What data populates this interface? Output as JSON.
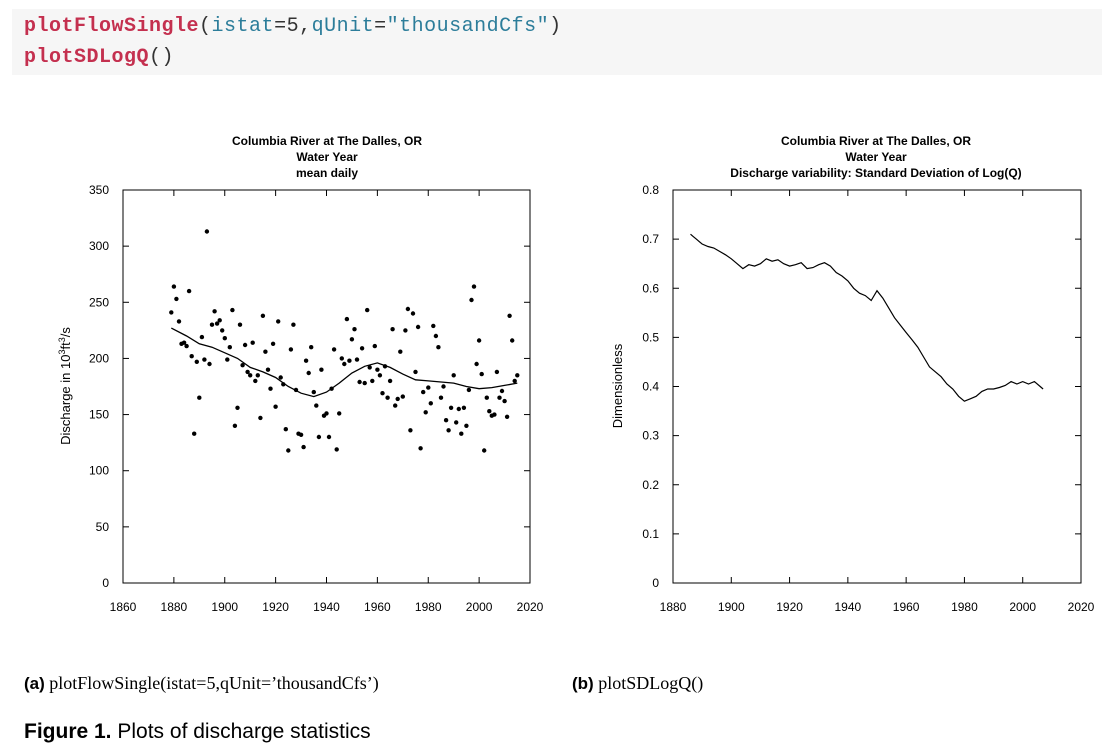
{
  "code": {
    "line1": {
      "fn": "plotFlowSingle",
      "open": "(",
      "arg1": "istat",
      "eq1": "=",
      "val1": "5",
      "comma": ",",
      "arg2": "qUnit",
      "eq2": "=",
      "val2": "\"thousandCfs\"",
      "close": ")"
    },
    "line2": {
      "fn": "plotSDLogQ",
      "parens": "()"
    }
  },
  "captions": {
    "a_label": "(a)",
    "a_text": "plotFlowSingle(istat=5,qUnit=’thousandCfs’)",
    "b_label": "(b)",
    "b_text": "plotSDLogQ()",
    "figure_label": "Figure 1.",
    "figure_text": "Plots of discharge statistics"
  },
  "chart_data": [
    {
      "type": "scatter",
      "title": [
        "Columbia River at The Dalles, OR",
        "Water Year",
        "mean daily"
      ],
      "xlabel": "",
      "ylabel": "Discharge in 10³ft³/s",
      "ylabel_parts": {
        "a": "Discharge in 10",
        "b": "3",
        "c": "ft",
        "d": "3",
        "e": "/s"
      },
      "xlim": [
        1860,
        2020
      ],
      "ylim": [
        0,
        350
      ],
      "xticks": [
        1860,
        1880,
        1900,
        1920,
        1940,
        1960,
        1980,
        2000,
        2020
      ],
      "yticks": [
        0,
        50,
        100,
        150,
        200,
        250,
        300,
        350
      ],
      "grid": false,
      "points": [
        [
          1879,
          241
        ],
        [
          1880,
          264
        ],
        [
          1881,
          253
        ],
        [
          1882,
          233
        ],
        [
          1883,
          213
        ],
        [
          1884,
          214
        ],
        [
          1885,
          211
        ],
        [
          1886,
          260
        ],
        [
          1887,
          202
        ],
        [
          1888,
          133
        ],
        [
          1889,
          197
        ],
        [
          1890,
          165
        ],
        [
          1891,
          219
        ],
        [
          1892,
          199
        ],
        [
          1893,
          313
        ],
        [
          1894,
          195
        ],
        [
          1895,
          230
        ],
        [
          1896,
          242
        ],
        [
          1897,
          231
        ],
        [
          1898,
          234
        ],
        [
          1899,
          225
        ],
        [
          1900,
          218
        ],
        [
          1901,
          199
        ],
        [
          1902,
          210
        ],
        [
          1903,
          243
        ],
        [
          1904,
          140
        ],
        [
          1905,
          156
        ],
        [
          1906,
          230
        ],
        [
          1907,
          194
        ],
        [
          1908,
          212
        ],
        [
          1909,
          188
        ],
        [
          1910,
          185
        ],
        [
          1911,
          214
        ],
        [
          1912,
          180
        ],
        [
          1913,
          185
        ],
        [
          1914,
          147
        ],
        [
          1915,
          238
        ],
        [
          1916,
          206
        ],
        [
          1917,
          190
        ],
        [
          1918,
          173
        ],
        [
          1919,
          213
        ],
        [
          1920,
          157
        ],
        [
          1921,
          233
        ],
        [
          1922,
          183
        ],
        [
          1923,
          177
        ],
        [
          1924,
          137
        ],
        [
          1925,
          118
        ],
        [
          1926,
          208
        ],
        [
          1927,
          230
        ],
        [
          1928,
          172
        ],
        [
          1929,
          133
        ],
        [
          1930,
          132
        ],
        [
          1931,
          121
        ],
        [
          1932,
          198
        ],
        [
          1933,
          187
        ],
        [
          1934,
          210
        ],
        [
          1935,
          170
        ],
        [
          1936,
          158
        ],
        [
          1937,
          130
        ],
        [
          1938,
          190
        ],
        [
          1939,
          149
        ],
        [
          1940,
          151
        ],
        [
          1941,
          130
        ],
        [
          1942,
          173
        ],
        [
          1943,
          208
        ],
        [
          1944,
          119
        ],
        [
          1945,
          151
        ],
        [
          1946,
          200
        ],
        [
          1947,
          195
        ],
        [
          1948,
          235
        ],
        [
          1949,
          198
        ],
        [
          1950,
          217
        ],
        [
          1951,
          226
        ],
        [
          1952,
          199
        ],
        [
          1953,
          179
        ],
        [
          1954,
          209
        ],
        [
          1955,
          178
        ],
        [
          1956,
          243
        ],
        [
          1957,
          192
        ],
        [
          1958,
          180
        ],
        [
          1959,
          211
        ],
        [
          1960,
          190
        ],
        [
          1961,
          185
        ],
        [
          1962,
          169
        ],
        [
          1963,
          193
        ],
        [
          1964,
          165
        ],
        [
          1965,
          180
        ],
        [
          1966,
          226
        ],
        [
          1967,
          158
        ],
        [
          1968,
          164
        ],
        [
          1969,
          206
        ],
        [
          1970,
          166
        ],
        [
          1971,
          225
        ],
        [
          1972,
          244
        ],
        [
          1973,
          136
        ],
        [
          1974,
          240
        ],
        [
          1975,
          188
        ],
        [
          1976,
          228
        ],
        [
          1977,
          120
        ],
        [
          1978,
          170
        ],
        [
          1979,
          152
        ],
        [
          1980,
          174
        ],
        [
          1981,
          160
        ],
        [
          1982,
          229
        ],
        [
          1983,
          220
        ],
        [
          1984,
          210
        ],
        [
          1985,
          165
        ],
        [
          1986,
          175
        ],
        [
          1987,
          145
        ],
        [
          1988,
          136
        ],
        [
          1989,
          156
        ],
        [
          1990,
          185
        ],
        [
          1991,
          143
        ],
        [
          1992,
          155
        ],
        [
          1993,
          133
        ],
        [
          1994,
          156
        ],
        [
          1995,
          140
        ],
        [
          1996,
          172
        ],
        [
          1997,
          252
        ],
        [
          1998,
          264
        ],
        [
          1999,
          195
        ],
        [
          2000,
          216
        ],
        [
          2001,
          186
        ],
        [
          2002,
          118
        ],
        [
          2003,
          165
        ],
        [
          2004,
          153
        ],
        [
          2005,
          149
        ],
        [
          2006,
          150
        ],
        [
          2007,
          188
        ],
        [
          2008,
          165
        ],
        [
          2009,
          171
        ],
        [
          2010,
          162
        ],
        [
          2011,
          148
        ],
        [
          2012,
          238
        ],
        [
          2013,
          216
        ],
        [
          2014,
          180
        ],
        [
          2015,
          185
        ]
      ],
      "smooth_line": [
        [
          1879,
          227
        ],
        [
          1885,
          220
        ],
        [
          1890,
          213
        ],
        [
          1895,
          210
        ],
        [
          1900,
          205
        ],
        [
          1905,
          200
        ],
        [
          1910,
          192
        ],
        [
          1915,
          188
        ],
        [
          1920,
          183
        ],
        [
          1925,
          175
        ],
        [
          1930,
          169
        ],
        [
          1935,
          166
        ],
        [
          1940,
          170
        ],
        [
          1945,
          178
        ],
        [
          1950,
          187
        ],
        [
          1955,
          193
        ],
        [
          1960,
          196
        ],
        [
          1965,
          192
        ],
        [
          1970,
          186
        ],
        [
          1975,
          181
        ],
        [
          1980,
          180
        ],
        [
          1985,
          179
        ],
        [
          1990,
          178
        ],
        [
          1995,
          175
        ],
        [
          2000,
          173
        ],
        [
          2005,
          174
        ],
        [
          2010,
          176
        ],
        [
          2015,
          178
        ]
      ]
    },
    {
      "type": "line",
      "title": [
        "Columbia River at The Dalles, OR",
        "Water Year",
        "Discharge variability: Standard Deviation of Log(Q)"
      ],
      "xlabel": "",
      "ylabel": "Dimensionless",
      "xlim": [
        1880,
        2020
      ],
      "ylim": [
        0,
        0.8
      ],
      "xticks": [
        1880,
        1900,
        1920,
        1940,
        1960,
        1980,
        2000,
        2020
      ],
      "yticks": [
        0,
        0.1,
        0.2,
        0.3,
        0.4,
        0.5,
        0.6,
        0.7,
        0.8
      ],
      "grid": false,
      "series": [
        {
          "x": [
            1886,
            1887,
            1888,
            1889,
            1890,
            1892,
            1894,
            1896,
            1898,
            1900,
            1902,
            1904,
            1906,
            1908,
            1910,
            1912,
            1914,
            1916,
            1918,
            1920,
            1922,
            1924,
            1926,
            1928,
            1930,
            1932,
            1934,
            1936,
            1938,
            1940,
            1942,
            1944,
            1946,
            1948,
            1950,
            1952,
            1954,
            1956,
            1958,
            1960,
            1962,
            1964,
            1966,
            1968,
            1970,
            1972,
            1974,
            1976,
            1978,
            1980,
            1982,
            1984,
            1986,
            1988,
            1990,
            1992,
            1994,
            1996,
            1998,
            2000,
            2002,
            2004,
            2006,
            2007
          ],
          "y": [
            0.71,
            0.705,
            0.7,
            0.695,
            0.69,
            0.685,
            0.682,
            0.675,
            0.668,
            0.66,
            0.65,
            0.64,
            0.648,
            0.645,
            0.65,
            0.66,
            0.655,
            0.658,
            0.65,
            0.645,
            0.648,
            0.652,
            0.64,
            0.642,
            0.648,
            0.652,
            0.645,
            0.632,
            0.625,
            0.615,
            0.6,
            0.59,
            0.585,
            0.575,
            0.595,
            0.58,
            0.56,
            0.54,
            0.525,
            0.51,
            0.495,
            0.48,
            0.46,
            0.44,
            0.43,
            0.42,
            0.405,
            0.395,
            0.38,
            0.37,
            0.375,
            0.38,
            0.39,
            0.395,
            0.395,
            0.398,
            0.402,
            0.41,
            0.405,
            0.41,
            0.405,
            0.41,
            0.4,
            0.395
          ]
        }
      ]
    }
  ]
}
